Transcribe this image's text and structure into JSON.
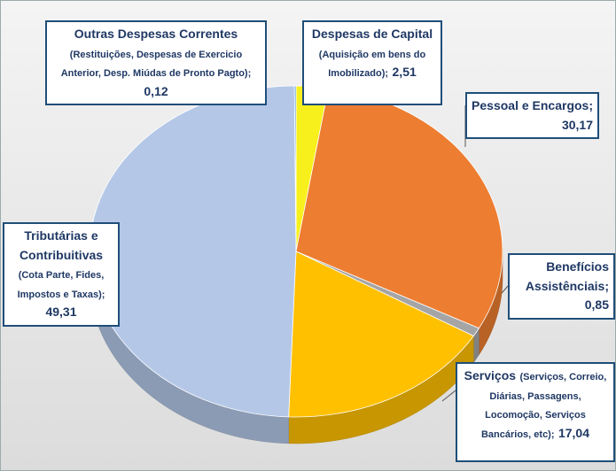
{
  "chart_data": {
    "type": "pie",
    "categories": [
      "Despesas de Capital",
      "Pessoal e Encargos;",
      "Benefícios Assistênciais;",
      "Serviços",
      "Tributárias e Contribuitivas",
      "Outras Despesas Correntes"
    ],
    "notes": [
      "(Aquisição em bens do Imobilizado);",
      null,
      null,
      "(Serviços, Correio, Diárias, Passagens, Locomoção, Serviços Bancários, etc);",
      "(Cota Parte, Fides, Impostos e Taxas);",
      "(Restituições, Despesas de Exercicio Anterior, Desp. Miúdas de Pronto Pagto);"
    ],
    "values": [
      2.51,
      30.17,
      0.85,
      17.04,
      49.31,
      0.12
    ],
    "value_labels": [
      "2,51",
      "30,17",
      "0,85",
      "17,04",
      "49,31",
      "0,12"
    ],
    "colors": [
      "#f7f01c",
      "#ed7d31",
      "#a5a5a5",
      "#ffc000",
      "#b4c7e7",
      "#5b9bd5"
    ],
    "start_angle": 0,
    "direction": "clockwise"
  }
}
